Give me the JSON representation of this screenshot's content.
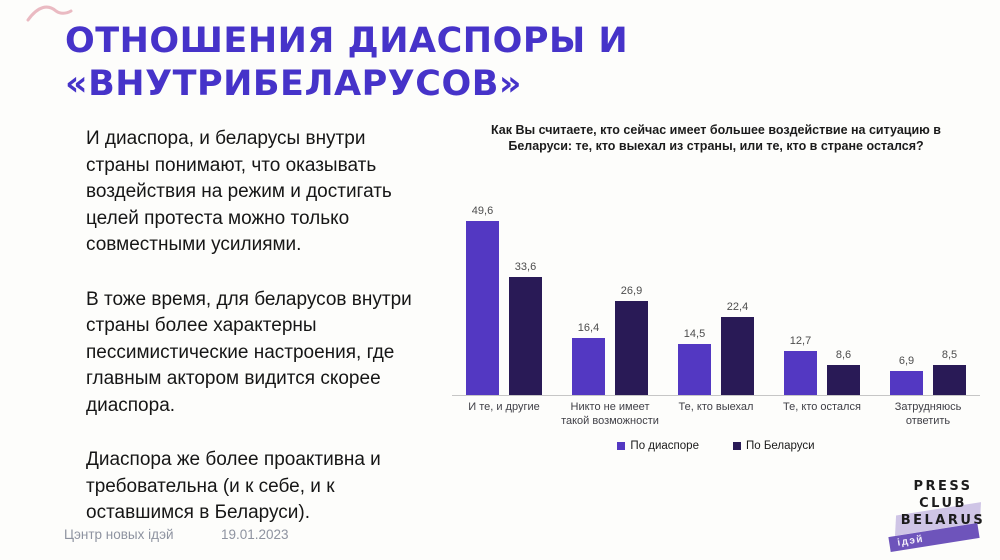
{
  "slide": {
    "title_lines": [
      "ОТНОШЕНИЯ ДИАСПОРЫ И",
      "«ВНУТРИБЕЛАРУСОВ»"
    ],
    "paragraphs": [
      "И диаспора, и беларусы внутри страны понимают, что оказывать воздействия на режим и достигать целей протеста можно только совместными усилиями.",
      "В тоже время, для беларусов внутри страны более характерны пессимистические настроения, где главным актором видится скорее диаспора.",
      "Диаспора же более проактивна и требовательна (и к себе, и к оставшимся в Беларуси)."
    ],
    "footer": {
      "source": "Цэнтр новых ідэй",
      "date": "19.01.2023"
    },
    "logo": {
      "line1": "Press",
      "line2": "Club",
      "line3": "Belarus",
      "ribbon": "ідэй"
    },
    "accent_color": "#4633c9"
  },
  "chart_data": {
    "type": "bar",
    "title": "Как Вы считаете, кто сейчас имеет большее воздействие на ситуацию в Беларуси: те, кто выехал из страны, или те, кто в стране остался?",
    "categories": [
      "И те, и другие",
      "Никто не имеет такой возможности",
      "Те, кто выехал",
      "Те, кто остался",
      "Затрудняюсь ответить"
    ],
    "series": [
      {
        "name": "По диаспоре",
        "color": "#5338c2",
        "values": [
          49.6,
          16.4,
          14.5,
          12.7,
          6.9
        ]
      },
      {
        "name": "По Беларуси",
        "color": "#291a56",
        "values": [
          33.6,
          26.9,
          22.4,
          8.6,
          8.5
        ]
      }
    ],
    "xlabel": "",
    "ylabel": "",
    "ylim": [
      0,
      55
    ],
    "grid": false,
    "legend_position": "bottom",
    "value_labels": true,
    "decimal_separator": ","
  }
}
